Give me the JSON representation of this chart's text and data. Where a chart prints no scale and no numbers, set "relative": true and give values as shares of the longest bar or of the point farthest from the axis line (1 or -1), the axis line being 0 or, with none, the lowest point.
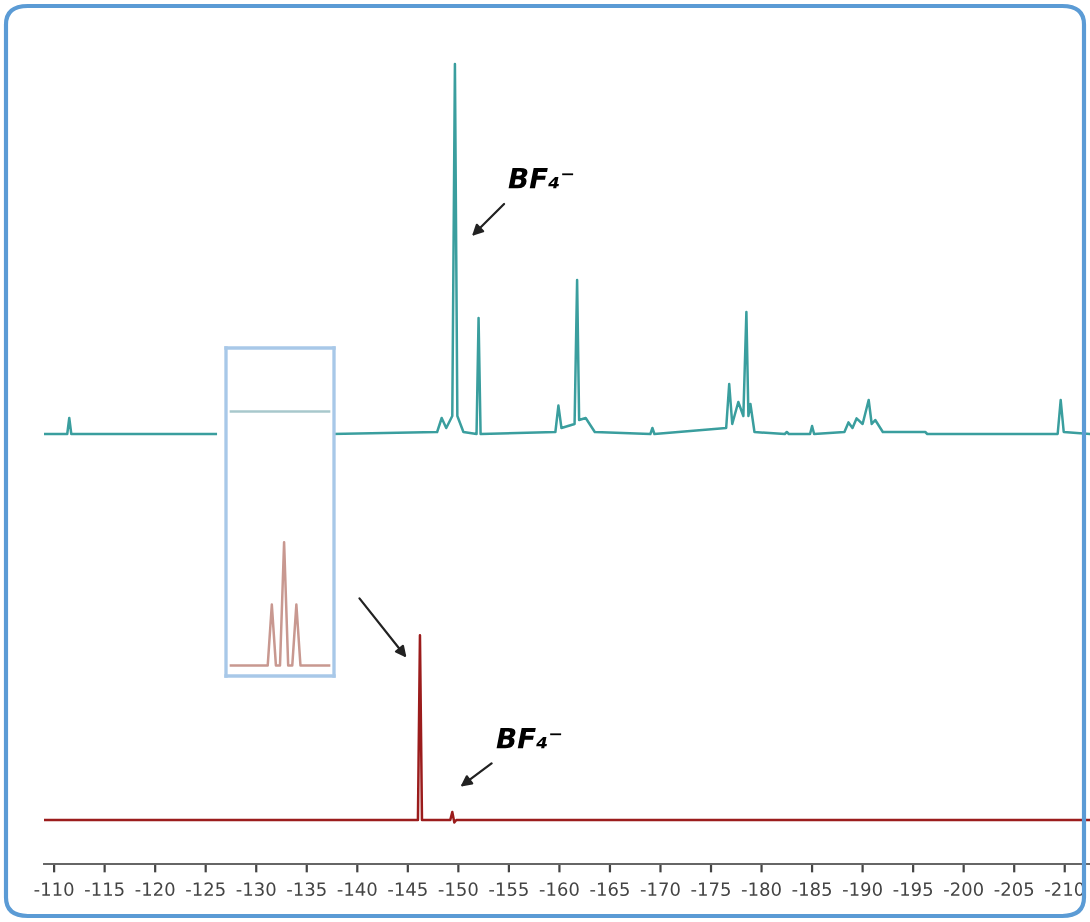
{
  "chart_data": [
    {
      "type": "line",
      "relative": true,
      "xlim": [
        -109,
        -212.5
      ],
      "xticks": [
        -110,
        -115,
        -120,
        -125,
        -130,
        -135,
        -140,
        -145,
        -150,
        -155,
        -160,
        -165,
        -170,
        -175,
        -180,
        -185,
        -190,
        -195,
        -200,
        -205,
        -210
      ],
      "grid": false,
      "legend": false,
      "series": [
        {
          "color": "#3a9e9e",
          "x": [
            -109,
            -111.3,
            -111.5,
            -111.7,
            -126,
            -126.5,
            -137.5,
            -147.9,
            -148.35,
            -148.8,
            -149.4,
            -149.66,
            -149.9,
            -150.5,
            -151.8,
            -152.0,
            -152.2,
            -159.6,
            -159.9,
            -160.2,
            -161.5,
            -161.75,
            -161.95,
            -162.6,
            -163.5,
            -169.0,
            -169.2,
            -169.4,
            -176.5,
            -176.8,
            -177.1,
            -177.7,
            -178.2,
            -178.5,
            -178.7,
            -178.9,
            -179.3,
            -182.3,
            -182.5,
            -182.7,
            -184.8,
            -185.0,
            -185.2,
            -188.2,
            -188.6,
            -189.0,
            -189.4,
            -190.0,
            -190.6,
            -190.9,
            -191.25,
            -192,
            -196.2,
            -196.4,
            -209.3,
            -209.6,
            -209.9,
            -212.5
          ],
          "values": [
            0.5375,
            0.5375,
            0.5575,
            0.5375,
            0.5375,
            null,
            0.5375,
            0.54,
            0.5575,
            0.545,
            0.56,
            1.0,
            0.56,
            0.54,
            0.5375,
            0.6825,
            0.5375,
            0.54,
            0.573,
            0.545,
            0.55,
            0.73,
            0.555,
            0.5575,
            0.54,
            0.5375,
            0.545,
            0.5375,
            0.545,
            0.6,
            0.55,
            0.5775,
            0.56,
            0.69,
            0.56,
            0.575,
            0.54,
            0.5375,
            0.54,
            0.5375,
            0.5375,
            0.5475,
            0.5375,
            0.54,
            0.552,
            0.545,
            0.557,
            0.55,
            0.58,
            0.55,
            0.555,
            0.54,
            0.54,
            0.5375,
            0.5375,
            0.58,
            0.54,
            0.5375
          ]
        },
        {
          "color": "#9b1c1c",
          "x": [
            -109,
            -146.0,
            -146.2,
            -146.4,
            -149.2,
            -149.4,
            -149.6,
            -149.8,
            -212.5
          ],
          "values": [
            0.055,
            0.055,
            0.2858,
            0.055,
            0.055,
            0.065,
            0.052,
            0.055,
            0.055
          ]
        }
      ],
      "annotations": [
        "BF₄⁻",
        "BF₄⁻"
      ]
    },
    {
      "type": "line",
      "relative": true,
      "tick_labels": false,
      "grid": false,
      "legend": false,
      "categories": [
        null,
        null,
        null,
        null,
        null,
        null,
        null,
        null,
        null,
        null,
        null,
        null,
        null,
        null,
        null,
        null,
        null,
        null,
        null,
        null,
        null,
        null,
        null,
        null,
        null
      ],
      "series": [
        {
          "color": "#a8c8cc",
          "values": [
            1,
            1,
            1,
            1,
            1,
            1,
            1,
            1,
            1,
            1,
            1,
            1,
            1,
            1,
            1,
            1,
            1,
            1,
            1,
            1,
            1,
            1,
            1,
            1,
            1
          ]
        },
        {
          "color": "#c89890",
          "values": [
            0.04,
            0.04,
            0.04,
            0.04,
            0.04,
            0.04,
            0.04,
            0.04,
            0.04,
            0.04,
            0.27,
            0.04,
            0.04,
            0.506,
            0.04,
            0.04,
            0.27,
            0.04,
            0.04,
            0.04,
            0.04,
            0.04,
            0.04,
            0.04,
            0.04
          ]
        }
      ]
    }
  ]
}
